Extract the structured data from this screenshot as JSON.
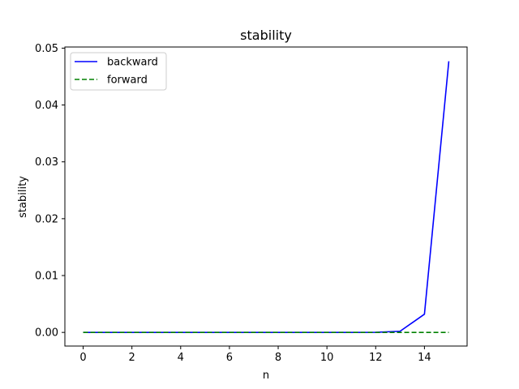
{
  "chart_data": {
    "type": "line",
    "title": "stability",
    "xlabel": "n",
    "ylabel": "stability",
    "xlim": [
      -0.75,
      15.75
    ],
    "ylim": [
      -0.0024,
      0.0502
    ],
    "x_ticks": [
      0,
      2,
      4,
      6,
      8,
      10,
      12,
      14
    ],
    "y_ticks": [
      0.0,
      0.01,
      0.02,
      0.03,
      0.04,
      0.05
    ],
    "y_tick_labels": [
      "0.00",
      "0.01",
      "0.02",
      "0.03",
      "0.04",
      "0.05"
    ],
    "x": [
      0,
      1,
      2,
      3,
      4,
      5,
      6,
      7,
      8,
      9,
      10,
      11,
      12,
      13,
      14,
      15
    ],
    "series": [
      {
        "name": "backward",
        "color": "#0000ff",
        "style": "solid",
        "values": [
          0,
          0,
          0,
          0,
          0,
          0,
          0,
          0,
          0,
          0,
          0,
          0,
          1e-05,
          0.0002,
          0.0032,
          0.0477
        ]
      },
      {
        "name": "forward",
        "color": "#008000",
        "style": "dashed",
        "values": [
          0,
          0,
          0,
          0,
          0,
          0,
          0,
          0,
          0,
          0,
          0,
          0,
          0,
          0,
          0,
          0
        ]
      }
    ],
    "legend": "top-left",
    "grid": false
  }
}
